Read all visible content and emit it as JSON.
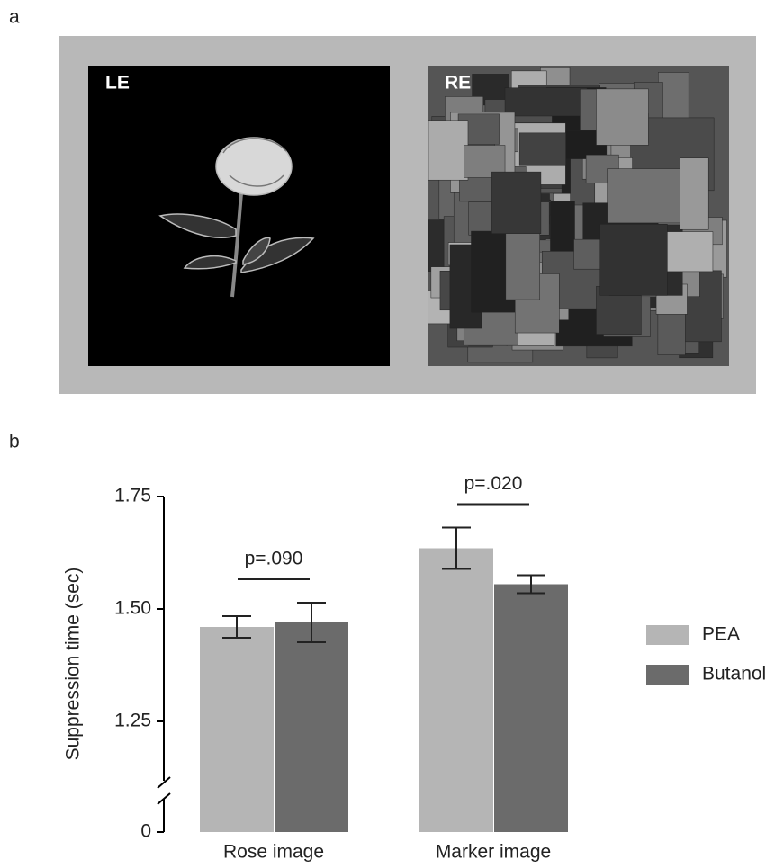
{
  "panel_a": {
    "label": "a",
    "left_label": "LE",
    "right_label": "RE"
  },
  "chart_data": {
    "type": "bar",
    "panel_label": "b",
    "y_label": "Suppression time (sec)",
    "categories": [
      "Rose image",
      "Marker image"
    ],
    "series": [
      {
        "name": "PEA",
        "color": "#b5b5b5",
        "values": [
          1.46,
          1.635
        ],
        "errors": [
          0.024,
          0.046
        ]
      },
      {
        "name": "Butanol",
        "color": "#6b6b6b",
        "values": [
          1.47,
          1.555
        ],
        "errors": [
          0.044,
          0.02
        ]
      }
    ],
    "annotations": [
      "p=.090",
      "p=.020"
    ],
    "ylim": [
      0,
      1.75
    ],
    "yticks": [
      0,
      1.25,
      {
        "value": 1.5,
        "label": "1.50"
      },
      1.75
    ],
    "axis_break": true,
    "legend": "right"
  }
}
